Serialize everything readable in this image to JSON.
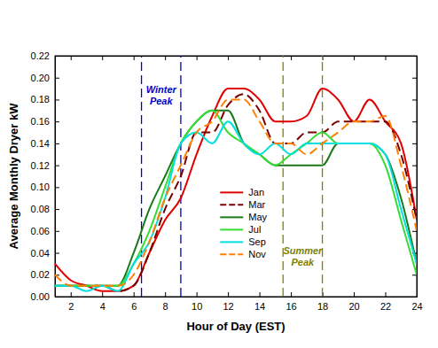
{
  "chart_data": {
    "type": "line",
    "x_label": "Hour of Day (EST)",
    "y_label": "Average Monthly Dryer kW",
    "x": [
      1,
      2,
      3,
      4,
      5,
      6,
      7,
      8,
      9,
      10,
      11,
      12,
      13,
      14,
      15,
      16,
      17,
      18,
      19,
      20,
      21,
      22,
      23,
      24
    ],
    "xlim": [
      1,
      24
    ],
    "xticks": [
      2,
      4,
      6,
      8,
      10,
      12,
      14,
      16,
      18,
      20,
      22,
      24
    ],
    "ylim": [
      0,
      0.22
    ],
    "yticks": [
      {
        "value": 0,
        "label": "0.00"
      },
      {
        "value": 0.02,
        "label": "0.02"
      },
      {
        "value": 0.04,
        "label": "0.04"
      },
      {
        "value": 0.06,
        "label": "0.06"
      },
      {
        "value": 0.08,
        "label": "0.08"
      },
      {
        "value": 0.1,
        "label": "0.10"
      },
      {
        "value": 0.12,
        "label": "0.12"
      },
      {
        "value": 0.14,
        "label": "0.14"
      },
      {
        "value": 0.16,
        "label": "0.16"
      },
      {
        "value": 0.18,
        "label": "0.18"
      },
      {
        "value": 0.2,
        "label": "0.20"
      },
      {
        "value": 0.22,
        "label": "0.22"
      }
    ],
    "grid": false,
    "legend": "center",
    "series": [
      {
        "name": "Jan",
        "color": "#e00000",
        "line_style": "solid",
        "values": [
          0.03,
          0.015,
          0.01,
          0.005,
          0.005,
          0.01,
          0.04,
          0.07,
          0.09,
          0.13,
          0.165,
          0.19,
          0.19,
          0.18,
          0.16,
          0.16,
          0.165,
          0.19,
          0.18,
          0.16,
          0.18,
          0.16,
          0.14,
          0.07
        ]
      },
      {
        "name": "Mar",
        "color": "#7a0000",
        "line_style": "dashed",
        "values": [
          0.01,
          0.01,
          0.01,
          0.01,
          0.005,
          0.01,
          0.04,
          0.08,
          0.11,
          0.15,
          0.15,
          0.175,
          0.185,
          0.17,
          0.14,
          0.14,
          0.15,
          0.15,
          0.16,
          0.16,
          0.16,
          0.16,
          0.13,
          0.07
        ]
      },
      {
        "name": "May",
        "color": "#1a7a1a",
        "line_style": "solid",
        "values": [
          0.01,
          0.01,
          0.01,
          0.01,
          0.01,
          0.04,
          0.08,
          0.11,
          0.14,
          0.16,
          0.17,
          0.17,
          0.14,
          0.13,
          0.12,
          0.12,
          0.12,
          0.12,
          0.14,
          0.14,
          0.14,
          0.13,
          0.09,
          0.03
        ]
      },
      {
        "name": "Jul",
        "color": "#33dd33",
        "line_style": "solid",
        "values": [
          0.01,
          0.01,
          0.01,
          0.01,
          0.01,
          0.03,
          0.06,
          0.1,
          0.14,
          0.16,
          0.17,
          0.15,
          0.14,
          0.13,
          0.12,
          0.13,
          0.14,
          0.15,
          0.14,
          0.14,
          0.14,
          0.12,
          0.07,
          0.02
        ]
      },
      {
        "name": "Sep",
        "color": "#00e0e0",
        "line_style": "solid",
        "values": [
          0.01,
          0.01,
          0.005,
          0.01,
          0.005,
          0.03,
          0.05,
          0.09,
          0.14,
          0.15,
          0.14,
          0.16,
          0.14,
          0.13,
          0.14,
          0.13,
          0.14,
          0.14,
          0.14,
          0.14,
          0.14,
          0.13,
          0.08,
          0.03
        ]
      },
      {
        "name": "Nov",
        "color": "#ff8000",
        "line_style": "dashed",
        "values": [
          0.02,
          0.01,
          0.01,
          0.01,
          0.01,
          0.02,
          0.05,
          0.09,
          0.12,
          0.15,
          0.16,
          0.18,
          0.18,
          0.16,
          0.14,
          0.14,
          0.13,
          0.14,
          0.15,
          0.16,
          0.16,
          0.165,
          0.12,
          0.06
        ]
      }
    ],
    "annotations": [
      {
        "text": [
          "Winter",
          "Peak"
        ],
        "x": [
          6.5,
          9
        ],
        "color": "#0000cc",
        "line_style": "dashed"
      },
      {
        "text": [
          "Summer",
          "Peak"
        ],
        "x": [
          15.5,
          18
        ],
        "color": "#808000",
        "line_style": "dashed"
      }
    ]
  }
}
